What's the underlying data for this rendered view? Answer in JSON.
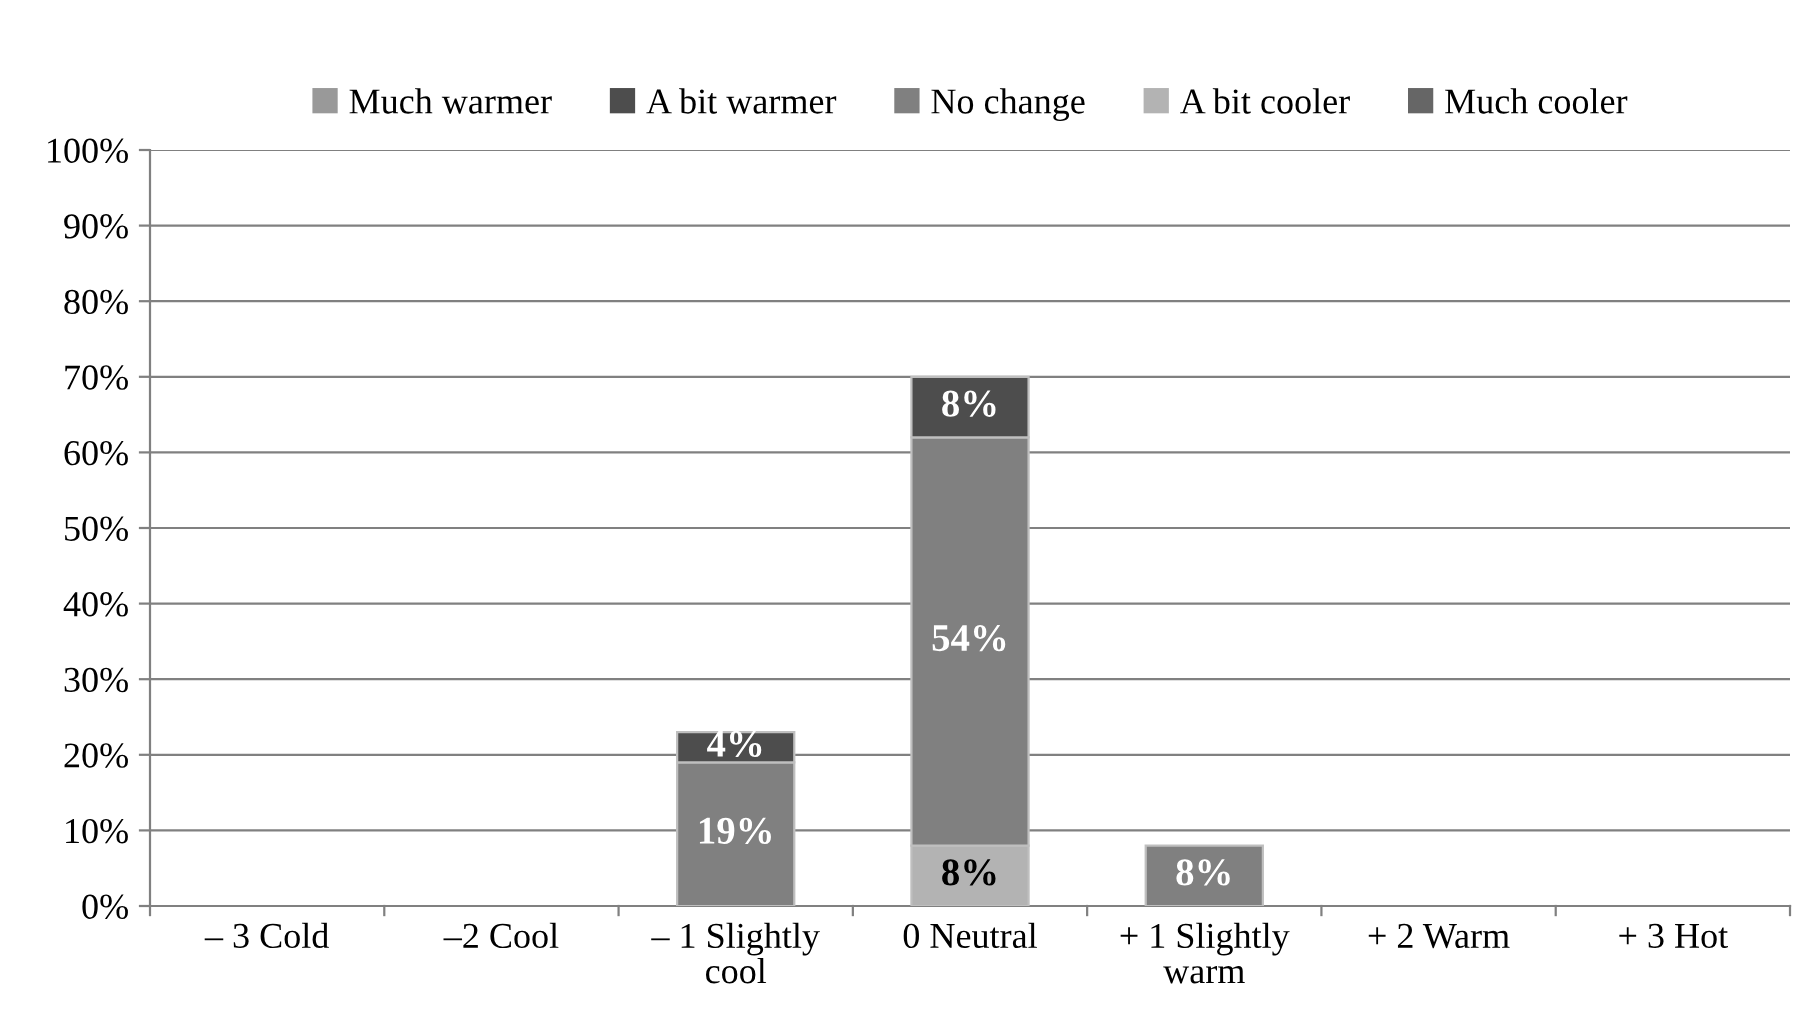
{
  "chart_data": {
    "type": "bar",
    "stacked": true,
    "categories": [
      "– 3 Cold",
      "–2 Cool",
      "– 1 Slightly\ncool",
      "0 Neutral",
      "+ 1 Slightly\nwarm",
      "+ 2 Warm",
      "+ 3 Hot"
    ],
    "series": [
      {
        "name": "Much cooler",
        "color": "#666666",
        "values": [
          null,
          null,
          null,
          null,
          null,
          null,
          null
        ],
        "value_labels": [
          null,
          null,
          null,
          null,
          null,
          null,
          null
        ]
      },
      {
        "name": "A bit cooler",
        "color": "#b3b3b3",
        "values": [
          null,
          null,
          null,
          8,
          null,
          null,
          null
        ],
        "value_labels": [
          null,
          null,
          null,
          "8%",
          null,
          null,
          null
        ]
      },
      {
        "name": "No change",
        "color": "#808080",
        "values": [
          null,
          null,
          19,
          54,
          8,
          null,
          null
        ],
        "value_labels": [
          null,
          null,
          "19%",
          "54%",
          "8%",
          null,
          null
        ]
      },
      {
        "name": "A bit warmer",
        "color": "#4d4d4d",
        "values": [
          null,
          null,
          4,
          8,
          null,
          null,
          null
        ],
        "value_labels": [
          null,
          null,
          "4%",
          "8%",
          null,
          null,
          null
        ]
      },
      {
        "name": "Much warmer",
        "color": "#999999",
        "values": [
          null,
          null,
          null,
          null,
          null,
          null,
          null
        ],
        "value_labels": [
          null,
          null,
          null,
          null,
          null,
          null,
          null
        ]
      }
    ],
    "ylim": [
      0,
      100
    ],
    "yticks": [
      {
        "value": 0,
        "label": "0%"
      },
      {
        "value": 10,
        "label": "10%"
      },
      {
        "value": 20,
        "label": "20%"
      },
      {
        "value": 30,
        "label": "30%"
      },
      {
        "value": 40,
        "label": "40%"
      },
      {
        "value": 50,
        "label": "50%"
      },
      {
        "value": 60,
        "label": "60%"
      },
      {
        "value": 70,
        "label": "70%"
      },
      {
        "value": 80,
        "label": "80%"
      },
      {
        "value": 90,
        "label": "90%"
      },
      {
        "value": 100,
        "label": "100%"
      }
    ],
    "grid": "y",
    "legend": "top"
  }
}
